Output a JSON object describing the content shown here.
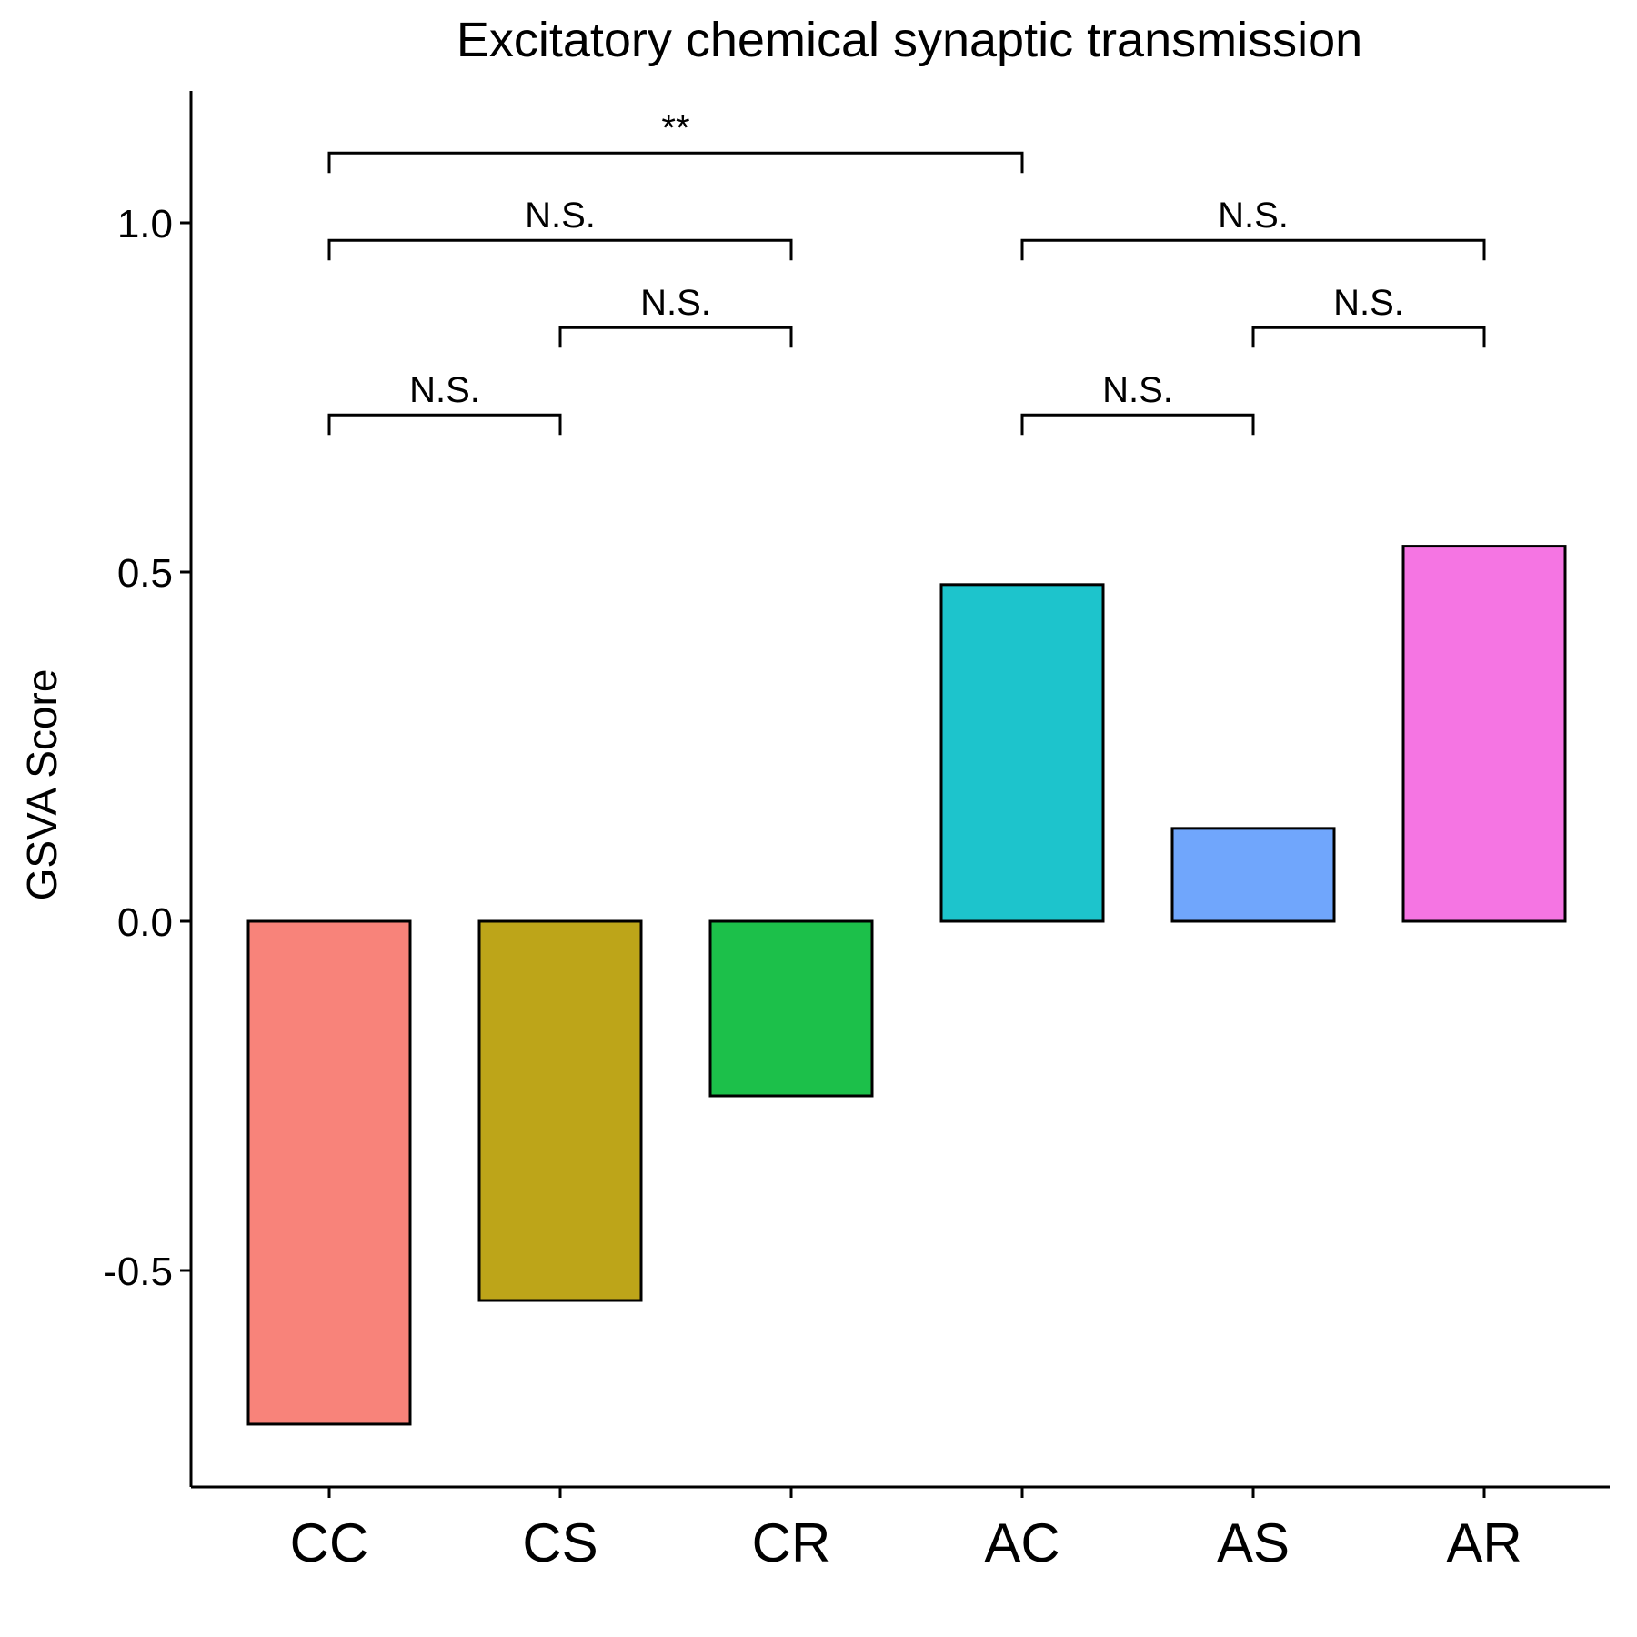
{
  "chart_data": {
    "type": "bar",
    "title": "Excitatory chemical synaptic transmission",
    "xlabel": "",
    "ylabel": "GSVA Score",
    "categories": [
      "CC",
      "CS",
      "CR",
      "AC",
      "AS",
      "AR"
    ],
    "values": [
      -0.72,
      -0.543,
      -0.25,
      0.482,
      0.133,
      0.537
    ],
    "colors": [
      "#F8837A",
      "#BDA519",
      "#1CC04A",
      "#1DC4CC",
      "#70A6FC",
      "#F575E3"
    ],
    "ylim": [
      -0.8,
      1.2
    ],
    "yticks": [
      -0.5,
      0.0,
      0.5,
      1.0
    ],
    "ytick_labels": [
      "-0.5",
      "0.0",
      "0.5",
      "1.0"
    ],
    "grid": false,
    "legend": "none",
    "comparisons": [
      {
        "from": "CC",
        "to": "AC",
        "y": 1.1,
        "label": "**"
      },
      {
        "from": "CC",
        "to": "CR",
        "y": 0.975,
        "label": "N.S."
      },
      {
        "from": "AC",
        "to": "AR",
        "y": 0.975,
        "label": "N.S."
      },
      {
        "from": "CS",
        "to": "CR",
        "y": 0.85,
        "label": "N.S."
      },
      {
        "from": "AS",
        "to": "AR",
        "y": 0.85,
        "label": "N.S."
      },
      {
        "from": "CC",
        "to": "CS",
        "y": 0.725,
        "label": "N.S."
      },
      {
        "from": "AC",
        "to": "AS",
        "y": 0.725,
        "label": "N.S."
      }
    ]
  }
}
